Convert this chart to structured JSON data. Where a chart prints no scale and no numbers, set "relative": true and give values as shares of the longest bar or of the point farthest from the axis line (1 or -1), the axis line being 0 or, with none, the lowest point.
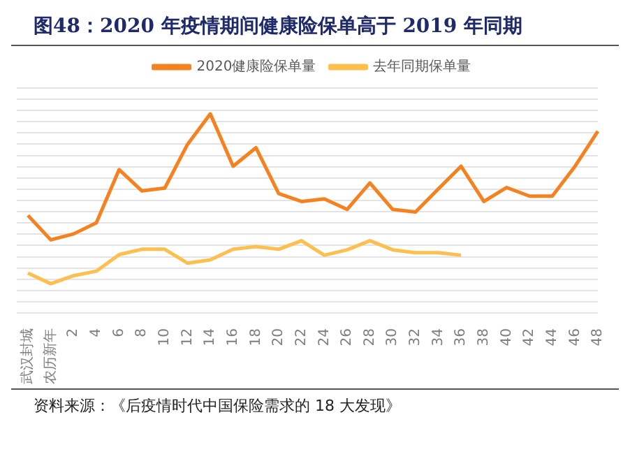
{
  "chart_data": {
    "type": "line",
    "title": "图48：2020 年疫情期间健康险保单高于 2019 年同期",
    "categories": [
      "武汉封城",
      "农历新年",
      "2",
      "4",
      "6",
      "8",
      "10",
      "12",
      "14",
      "16",
      "18",
      "20",
      "22",
      "24",
      "26",
      "28",
      "30",
      "32",
      "34",
      "36",
      "38",
      "40",
      "42",
      "44",
      "46",
      "48"
    ],
    "relative": true,
    "series": [
      {
        "name": "2020健康险保单量",
        "color": "#f58220",
        "values": [
          0.49,
          0.367,
          0.397,
          0.453,
          0.72,
          0.613,
          0.627,
          0.847,
          1,
          0.737,
          0.83,
          0.6,
          0.56,
          0.573,
          0.52,
          0.653,
          0.52,
          0.507,
          0.623,
          0.737,
          0.56,
          0.63,
          0.587,
          0.587,
          0.737,
          0.913
        ]
      },
      {
        "name": "去年同期保单量",
        "color": "#fdbf4f",
        "values": [
          0.2,
          0.147,
          0.187,
          0.21,
          0.293,
          0.32,
          0.32,
          0.25,
          0.267,
          0.32,
          0.333,
          0.32,
          0.363,
          0.29,
          0.317,
          0.363,
          0.317,
          0.303,
          0.303,
          0.29,
          null,
          null,
          null,
          null,
          null,
          null
        ]
      }
    ],
    "grid": "y",
    "legend": "top",
    "marker": "none",
    "line_style": "solid",
    "annotations": [
      "资料来源：《后疫情时代中国保险需求的 18 大发现》"
    ]
  }
}
